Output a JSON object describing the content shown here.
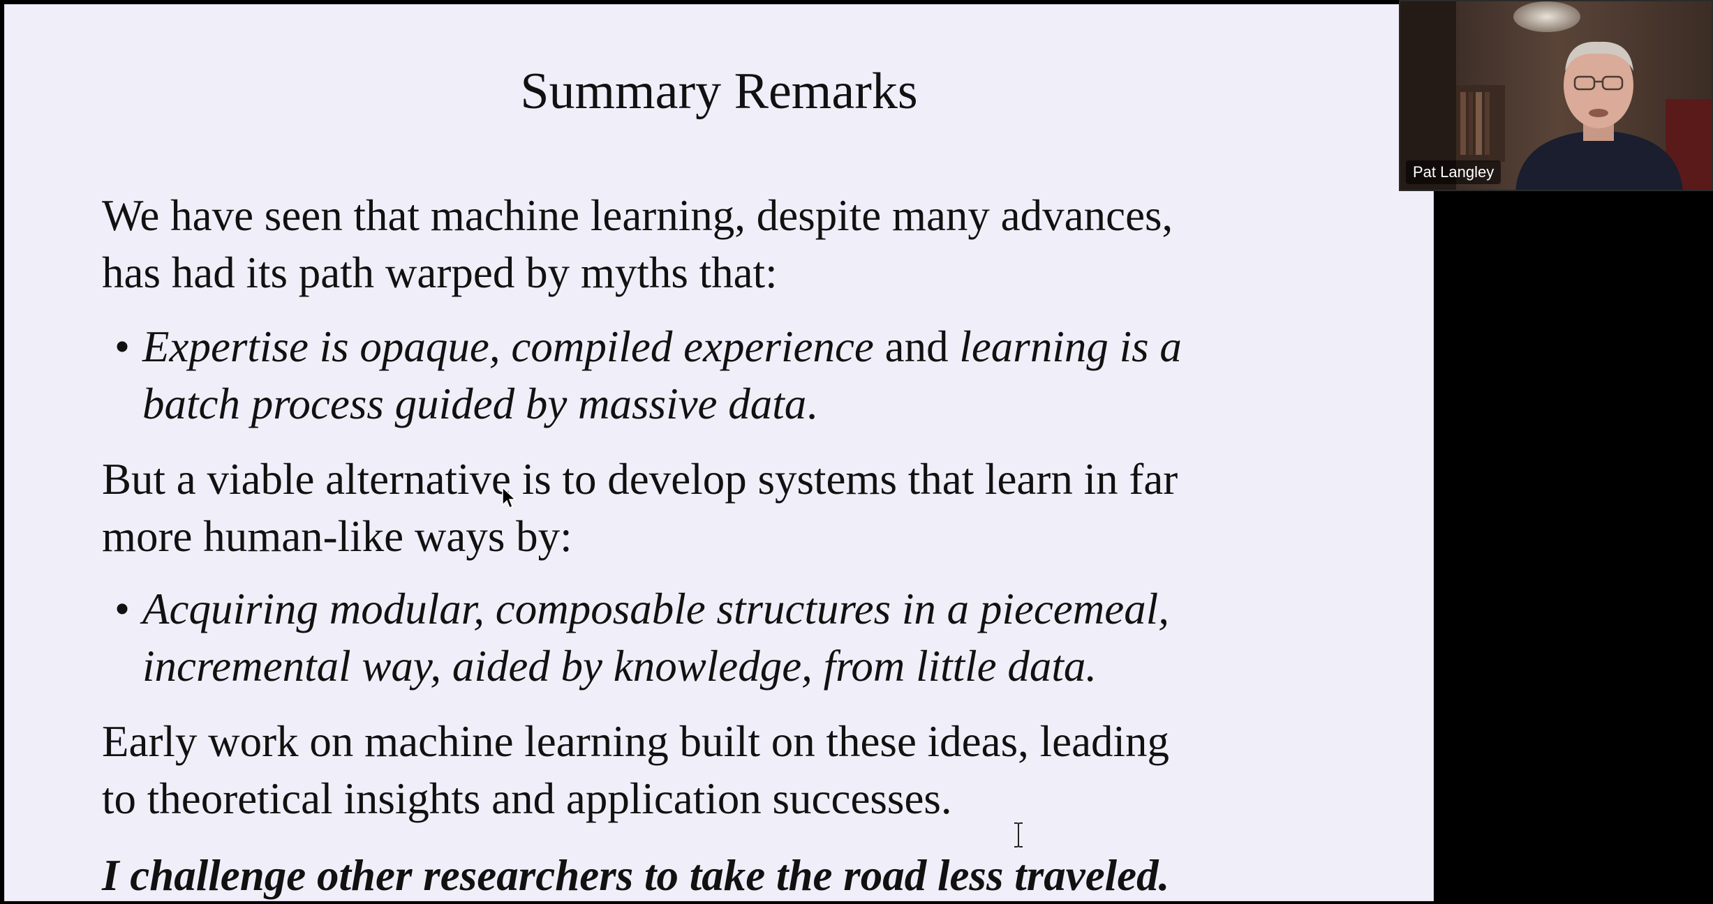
{
  "slide": {
    "title": "Summary Remarks",
    "para1_line1": "We have seen that machine learning, despite many advances,",
    "para1_line2": "has had its path warped by myths that:",
    "bullet1_part1": "Expertise is opaque, compiled experience",
    "bullet1_and": " and ",
    "bullet1_part2": "learning is a",
    "bullet1_line2": "batch process guided by massive data",
    "bullet1_period": ".",
    "para2_line1": "But a viable alternative is to develop systems that learn in far",
    "para2_line2": "more human-like ways by:",
    "bullet2_line1": "Acquiring modular, composable structures in a piecemeal,",
    "bullet2_line2": "incremental way, aided by knowledge, from little data.",
    "para3_line1": "Early work on machine learning built on these ideas, leading",
    "para3_line2": "to theoretical insights and application successes.",
    "challenge": "I challenge other researchers to take the road less traveled."
  },
  "video": {
    "participant_name": "Pat Langley"
  },
  "colors": {
    "slide_background": "#f0eff9",
    "text": "#111111",
    "screen_background": "#000000"
  }
}
